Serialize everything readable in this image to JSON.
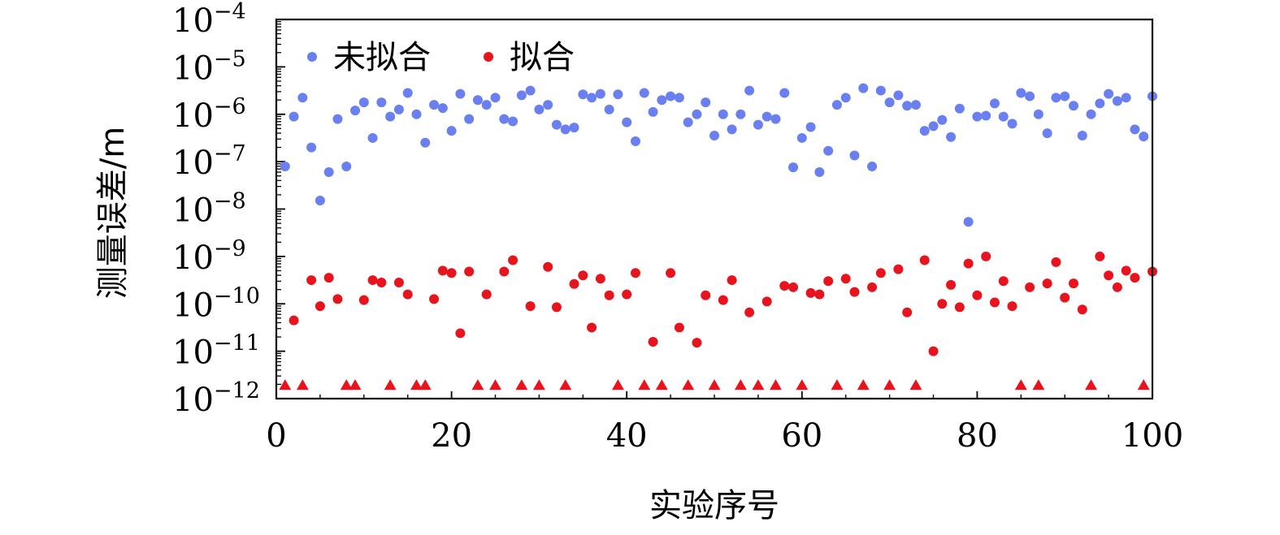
{
  "chart_data": {
    "type": "scatter",
    "xlabel": "实验序号",
    "ylabel": "测量误差/m",
    "x_range": [
      0,
      100
    ],
    "y_range_log10": [
      -12,
      -4
    ],
    "y_scale": "log",
    "x_ticks": [
      0,
      20,
      40,
      60,
      80,
      100
    ],
    "y_ticks": [
      {
        "base": "10",
        "exp": "−12"
      },
      {
        "base": "10",
        "exp": "−11"
      },
      {
        "base": "10",
        "exp": "−10"
      },
      {
        "base": "10",
        "exp": "−9"
      },
      {
        "base": "10",
        "exp": "−8"
      },
      {
        "base": "10",
        "exp": "−7"
      },
      {
        "base": "10",
        "exp": "−6"
      },
      {
        "base": "10",
        "exp": "−5"
      },
      {
        "base": "10",
        "exp": "−4"
      }
    ],
    "grid": false,
    "legend_position": "top-left",
    "legend": [
      {
        "label": "未拟合",
        "color": "#6a7ff0"
      },
      {
        "label": "拟合",
        "color": "#e8141d"
      }
    ],
    "series": [
      {
        "name": "未拟合",
        "color": "#6a7ff0",
        "marker": "circle",
        "x": [
          1,
          2,
          3,
          4,
          5,
          6,
          7,
          8,
          9,
          10,
          11,
          12,
          13,
          14,
          15,
          16,
          17,
          18,
          19,
          20,
          21,
          22,
          23,
          24,
          25,
          26,
          27,
          28,
          29,
          30,
          31,
          32,
          33,
          34,
          35,
          36,
          37,
          38,
          39,
          40,
          41,
          42,
          43,
          44,
          45,
          46,
          47,
          48,
          49,
          50,
          51,
          52,
          53,
          54,
          55,
          56,
          57,
          58,
          59,
          60,
          61,
          62,
          63,
          64,
          65,
          66,
          67,
          68,
          69,
          70,
          71,
          72,
          73,
          74,
          75,
          76,
          77,
          78,
          79,
          80,
          81,
          82,
          83,
          84,
          85,
          86,
          87,
          88,
          89,
          90,
          91,
          92,
          93,
          94,
          95,
          96,
          97,
          98,
          99,
          100
        ],
        "y_log10": [
          -7.1,
          -6.05,
          -5.65,
          -6.7,
          -7.82,
          -7.22,
          -6.1,
          -7.1,
          -5.92,
          -5.75,
          -6.5,
          -5.75,
          -6.05,
          -5.9,
          -5.55,
          -6.0,
          -6.6,
          -5.8,
          -5.87,
          -6.35,
          -5.57,
          -6.1,
          -5.7,
          -5.8,
          -5.65,
          -6.1,
          -6.15,
          -5.6,
          -5.5,
          -5.9,
          -5.8,
          -6.22,
          -6.32,
          -6.28,
          -5.58,
          -5.65,
          -5.57,
          -5.9,
          -5.58,
          -6.17,
          -6.57,
          -5.55,
          -5.95,
          -5.7,
          -5.62,
          -5.65,
          -6.17,
          -6.0,
          -5.75,
          -6.45,
          -6.0,
          -6.32,
          -6.0,
          -5.5,
          -6.22,
          -6.05,
          -6.1,
          -5.55,
          -7.12,
          -6.5,
          -6.27,
          -7.22,
          -6.77,
          -5.8,
          -5.65,
          -6.87,
          -5.45,
          -7.1,
          -5.5,
          -5.75,
          -5.6,
          -5.82,
          -5.8,
          -6.35,
          -6.25,
          -6.12,
          -6.48,
          -5.88,
          -8.27,
          -6.05,
          -6.03,
          -5.77,
          -6.05,
          -6.2,
          -5.55,
          -5.62,
          -6.0,
          -6.4,
          -5.65,
          -5.62,
          -5.82,
          -6.45,
          -6.0,
          -5.77,
          -5.57,
          -5.72,
          -5.65,
          -6.32,
          -6.47,
          -5.62
        ]
      },
      {
        "name": "拟合",
        "color": "#e8141d",
        "marker": "circle",
        "x": [
          2,
          4,
          5,
          6,
          7,
          10,
          11,
          12,
          14,
          15,
          18,
          19,
          20,
          21,
          22,
          24,
          26,
          27,
          29,
          31,
          32,
          34,
          35,
          36,
          37,
          38,
          40,
          41,
          43,
          45,
          46,
          48,
          49,
          51,
          52,
          54,
          56,
          58,
          59,
          61,
          62,
          63,
          65,
          66,
          68,
          69,
          71,
          72,
          74,
          75,
          76,
          77,
          78,
          79,
          80,
          81,
          82,
          83,
          84,
          86,
          88,
          89,
          90,
          91,
          92,
          94,
          95,
          96,
          97,
          98,
          100
        ],
        "y_log10": [
          -10.35,
          -9.5,
          -10.05,
          -9.45,
          -9.9,
          -9.92,
          -9.5,
          -9.55,
          -9.55,
          -9.8,
          -9.9,
          -9.3,
          -9.35,
          -10.62,
          -9.32,
          -9.8,
          -9.32,
          -9.08,
          -10.05,
          -9.22,
          -10.07,
          -9.58,
          -9.4,
          -10.5,
          -9.47,
          -9.82,
          -9.8,
          -9.35,
          -10.8,
          -9.35,
          -10.5,
          -10.82,
          -9.82,
          -9.92,
          -9.5,
          -10.18,
          -9.95,
          -9.62,
          -9.65,
          -9.77,
          -9.8,
          -9.52,
          -9.47,
          -9.75,
          -9.65,
          -9.35,
          -9.27,
          -10.18,
          -9.08,
          -11.0,
          -10.0,
          -9.6,
          -10.07,
          -9.15,
          -9.82,
          -9.0,
          -9.97,
          -9.52,
          -10.05,
          -9.65,
          -9.57,
          -9.12,
          -9.87,
          -9.57,
          -10.12,
          -9.0,
          -9.4,
          -9.65,
          -9.3,
          -9.45,
          -9.32
        ]
      },
      {
        "name": "",
        "color": "#e8141d",
        "marker": "triangle",
        "x": [
          1,
          3,
          8,
          9,
          13,
          16,
          17,
          23,
          25,
          28,
          30,
          33,
          39,
          42,
          44,
          47,
          50,
          53,
          55,
          57,
          60,
          64,
          67,
          70,
          73,
          85,
          87,
          93,
          99
        ],
        "y_log10": [
          -11.72,
          -11.72,
          -11.72,
          -11.72,
          -11.72,
          -11.72,
          -11.72,
          -11.72,
          -11.72,
          -11.72,
          -11.72,
          -11.72,
          -11.72,
          -11.72,
          -11.72,
          -11.72,
          -11.72,
          -11.72,
          -11.72,
          -11.72,
          -11.72,
          -11.72,
          -11.72,
          -11.72,
          -11.72,
          -11.72,
          -11.72,
          -11.72,
          -11.72
        ]
      }
    ]
  }
}
